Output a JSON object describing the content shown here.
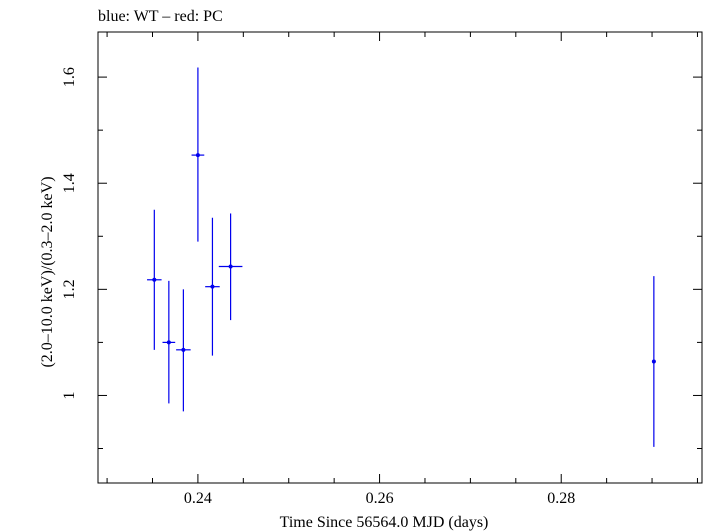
{
  "chart_data": {
    "type": "scatter",
    "title": "blue: WT – red: PC",
    "xlabel": "Time Since 56564.0 MJD (days)",
    "ylabel": "(2.0–10.0 keV)/(0.3–2.0 keV)",
    "xlim": [
      0.229,
      0.2955
    ],
    "ylim": [
      0.835,
      1.685
    ],
    "x_ticks": [
      {
        "value": 0.24,
        "label": "0.24"
      },
      {
        "value": 0.26,
        "label": "0.26"
      },
      {
        "value": 0.28,
        "label": "0.28"
      }
    ],
    "y_ticks": [
      {
        "value": 1.0,
        "label": "1"
      },
      {
        "value": 1.2,
        "label": "1.2"
      },
      {
        "value": 1.4,
        "label": "1.4"
      },
      {
        "value": 1.6,
        "label": "1.6"
      }
    ],
    "grid": false,
    "series": [
      {
        "color": "#0000ee",
        "points": [
          {
            "x": 0.2352,
            "xerr": 0.0008,
            "y": 1.218,
            "ylow": 1.086,
            "yhigh": 1.35
          },
          {
            "x": 0.2368,
            "xerr": 0.0007,
            "y": 1.1,
            "ylow": 0.985,
            "yhigh": 1.216
          },
          {
            "x": 0.2384,
            "xerr": 0.0008,
            "y": 1.086,
            "ylow": 0.97,
            "yhigh": 1.2
          },
          {
            "x": 0.24,
            "xerr": 0.0007,
            "y": 1.453,
            "ylow": 1.29,
            "yhigh": 1.618
          },
          {
            "x": 0.2416,
            "xerr": 0.0008,
            "y": 1.205,
            "ylow": 1.075,
            "yhigh": 1.335
          },
          {
            "x": 0.2436,
            "xerr": 0.0013,
            "y": 1.243,
            "ylow": 1.142,
            "yhigh": 1.343
          },
          {
            "x": 0.2902,
            "xerr": 0.0002,
            "y": 1.064,
            "ylow": 0.903,
            "yhigh": 1.225
          }
        ]
      }
    ]
  }
}
